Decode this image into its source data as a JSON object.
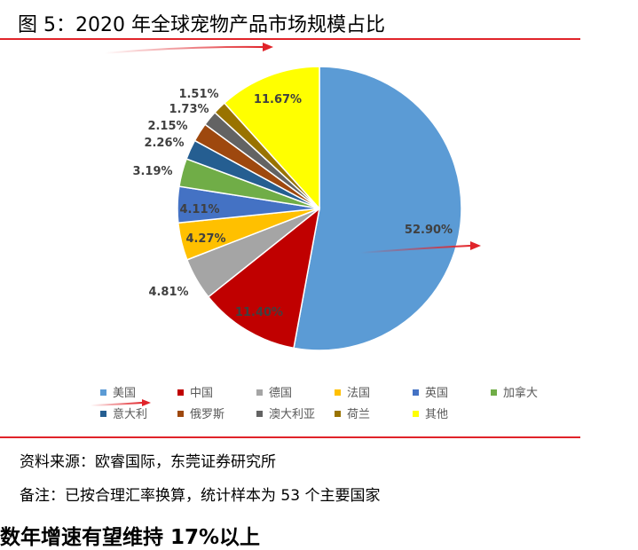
{
  "figure_title": "图 5：2020 年全球宠物产品市场规模占比",
  "source_line": "资料来源：欧睿国际，东莞证券研究所",
  "remark_line": "备注：已按合理汇率换算，统计样本为 53 个主要国家",
  "next_heading_partial": "数年增速有望维持 17%以上",
  "colors": {
    "rule": "#e0242a",
    "arrow": "#e0242a",
    "label_text": "#404040",
    "legend_text": "#595959"
  },
  "chart_data": {
    "type": "pie",
    "legend_placement": "bottom",
    "slices": [
      {
        "name": "美国",
        "value": 52.9,
        "label": "52.90%",
        "color": "#5b9bd5"
      },
      {
        "name": "中国",
        "value": 11.4,
        "label": "11.40%",
        "color": "#c00000"
      },
      {
        "name": "德国",
        "value": 4.81,
        "label": "4.81%",
        "color": "#a5a5a5"
      },
      {
        "name": "法国",
        "value": 4.27,
        "label": "4.27%",
        "color": "#ffc000"
      },
      {
        "name": "英国",
        "value": 4.11,
        "label": "4.11%",
        "color": "#4472c4"
      },
      {
        "name": "加拿大",
        "value": 3.19,
        "label": "3.19%",
        "color": "#70ad47"
      },
      {
        "name": "意大利",
        "value": 2.26,
        "label": "2.26%",
        "color": "#255e91"
      },
      {
        "name": "俄罗斯",
        "value": 2.15,
        "label": "2.15%",
        "color": "#9e480e"
      },
      {
        "name": "澳大利亚",
        "value": 1.73,
        "label": "1.73%",
        "color": "#636363"
      },
      {
        "name": "荷兰",
        "value": 1.51,
        "label": "1.51%",
        "color": "#997300"
      },
      {
        "name": "其他",
        "value": 11.67,
        "label": "11.67%",
        "color": "#ffff00"
      }
    ]
  }
}
